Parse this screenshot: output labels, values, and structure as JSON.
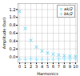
{
  "chart_data": {
    "type": "scatter",
    "xlabel": "Harmonics",
    "ylabel": "Amplitude (bar)",
    "x": [
      0,
      1,
      2,
      3,
      4,
      5,
      6,
      7,
      8,
      9,
      10
    ],
    "series": [
      {
        "name": "ak/2",
        "color": "#55ccee",
        "marker": "x",
        "values": [
          1.15,
          0.72,
          0.42,
          0.25,
          0.15,
          0.1,
          0.07,
          0.05,
          0.03,
          0.02,
          0.015
        ]
      },
      {
        "name": "bk/2",
        "color": "#88ddff",
        "marker": "+",
        "values": [
          -0.06,
          -0.06,
          -0.05,
          -0.06,
          -0.06,
          -0.06,
          -0.06,
          -0.05,
          -0.05,
          -0.05,
          -0.05
        ]
      }
    ],
    "xlim": [
      -0.3,
      10.3
    ],
    "ylim": [
      -0.15,
      1.35
    ],
    "xticks": [
      0,
      1,
      2,
      3,
      4,
      5,
      6,
      7,
      8,
      9,
      10
    ],
    "yticks": [
      {
        "value": 0,
        "label": "0.0"
      },
      0.2,
      0.4,
      0.6,
      0.8,
      {
        "value": 1,
        "label": "1.0"
      },
      1.2
    ],
    "grid": true,
    "legend": "upper right"
  }
}
